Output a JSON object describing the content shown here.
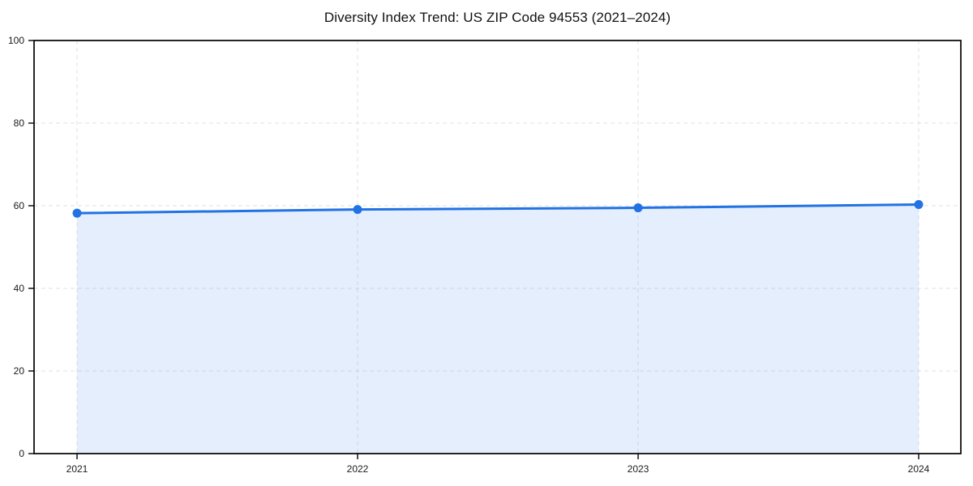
{
  "chart_data": {
    "type": "area",
    "title": "Diversity Index Trend: US ZIP Code 94553 (2021–2024)",
    "categories": [
      "2021",
      "2022",
      "2023",
      "2024"
    ],
    "series": [
      {
        "name": "Diversity Index",
        "values": [
          58.2,
          59.1,
          59.5,
          60.3
        ]
      }
    ],
    "xlabel": "",
    "ylabel": "",
    "ylim": [
      0,
      100
    ],
    "yticks": [
      0,
      20,
      40,
      60,
      80,
      100
    ],
    "grid": true,
    "grid_style": "dashed",
    "legend_position": "none",
    "colors": {
      "line": "#2272e3",
      "marker": "#2272e3",
      "fill": "rgba(34, 114, 227, 0.12)",
      "grid": "#e2e2e2",
      "spine": "#000000",
      "tick_text": "#1a1a1a",
      "background": "#ffffff"
    }
  }
}
